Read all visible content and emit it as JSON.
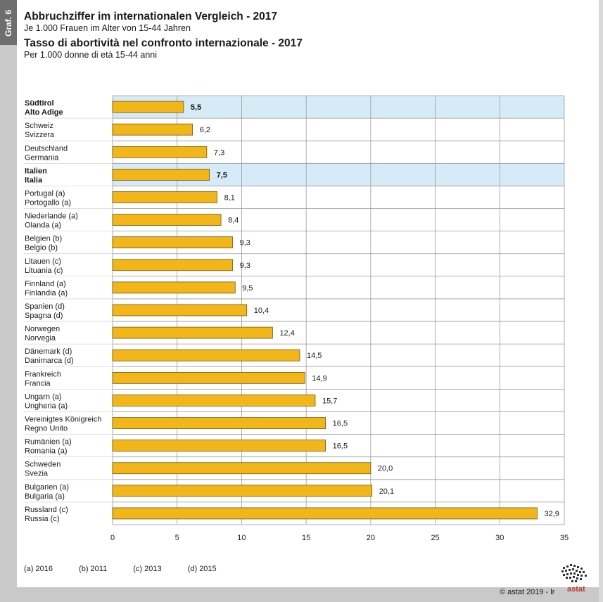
{
  "graf_label": "Graf. 6",
  "title_de": "Abbruchziffer im internationalen Vergleich - 2017",
  "subtitle_de": "Je 1.000 Frauen im Alter von 15-44 Jahren",
  "title_it": "Tasso di abortività nel confronto internazionale - 2017",
  "subtitle_it": "Per 1.000 donne di età 15-44 anni",
  "colors": {
    "bar": "#f2b619",
    "bar_stroke": "#5a4a10",
    "highlight": "#d6ebf7",
    "grid": "#9a9a9a"
  },
  "chart_data": {
    "type": "bar",
    "orientation": "horizontal",
    "categories": [
      {
        "de": "Südtirol",
        "it": "Alto Adige",
        "highlight": true
      },
      {
        "de": "Schweiz",
        "it": "Svizzera",
        "highlight": false
      },
      {
        "de": "Deutschland",
        "it": "Germania",
        "highlight": false
      },
      {
        "de": "Italien",
        "it": "Italia",
        "highlight": true
      },
      {
        "de": "Portugal (a)",
        "it": "Portogallo (a)",
        "highlight": false
      },
      {
        "de": "Niederlande (a)",
        "it": "Olanda (a)",
        "highlight": false
      },
      {
        "de": "Belgien (b)",
        "it": "Belgio (b)",
        "highlight": false
      },
      {
        "de": "Litauen (c)",
        "it": "Lituania (c)",
        "highlight": false
      },
      {
        "de": "Finnland (a)",
        "it": "Finlandia (a)",
        "highlight": false
      },
      {
        "de": "Spanien (d)",
        "it": "Spagna (d)",
        "highlight": false
      },
      {
        "de": "Norwegen",
        "it": "Norvegia",
        "highlight": false
      },
      {
        "de": "Dänemark (d)",
        "it": "Danimarca (d)",
        "highlight": false
      },
      {
        "de": "Frankreich",
        "it": "Francia",
        "highlight": false
      },
      {
        "de": "Ungarn (a)",
        "it": "Ungheria (a)",
        "highlight": false
      },
      {
        "de": "Vereinigtes Königreich",
        "it": "Regno Unito",
        "highlight": false
      },
      {
        "de": "Rumänien (a)",
        "it": "Romania (a)",
        "highlight": false
      },
      {
        "de": "Schweden",
        "it": "Svezia",
        "highlight": false
      },
      {
        "de": "Bulgarien (a)",
        "it": "Bulgaria (a)",
        "highlight": false
      },
      {
        "de": "Russland (c)",
        "it": "Russia (c)",
        "highlight": false
      }
    ],
    "values": [
      5.5,
      6.2,
      7.3,
      7.5,
      8.1,
      8.4,
      9.3,
      9.3,
      9.5,
      10.4,
      12.4,
      14.5,
      14.9,
      15.7,
      16.5,
      16.5,
      20.0,
      20.1,
      32.9
    ],
    "value_labels": [
      "5,5",
      "6,2",
      "7,3",
      "7,5",
      "8,1",
      "8,4",
      "9,3",
      "9,3",
      "9,5",
      "10,4",
      "12,4",
      "14,5",
      "14,9",
      "15,7",
      "16,5",
      "16,5",
      "20,0",
      "20,1",
      "32,9"
    ],
    "xlim": [
      0,
      35
    ],
    "xticks": [
      0,
      5,
      10,
      15,
      20,
      25,
      30,
      35
    ],
    "grid": true,
    "legend": "none"
  },
  "footnotes": [
    "(a)  2016",
    "(b)  2011",
    "(c)  2013",
    "(d)  2015"
  ],
  "credit": "©  astat 2019 - lr",
  "logo_text": "astat"
}
